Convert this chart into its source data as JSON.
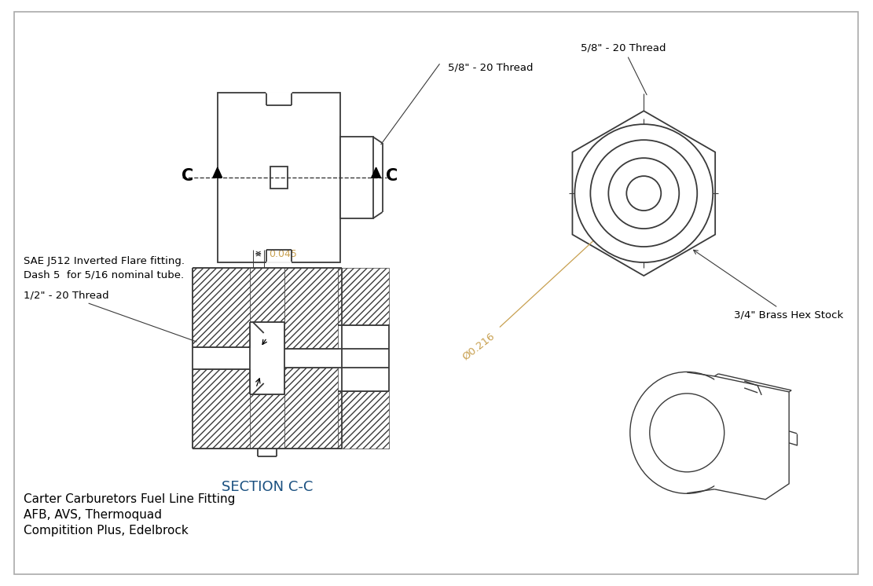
{
  "bg_color": "#ffffff",
  "line_color": "#3a3a3a",
  "dim_color": "#c8a050",
  "section_label_color": "#1a5080",
  "title_lines": [
    "Carter Carburetors Fuel Line Fitting",
    "AFB, AVS, Thermoquad",
    "Compitition Plus, Edelbrock"
  ],
  "sae_line1": "SAE J512 Inverted Flare fitting.",
  "sae_line2": "Dash 5  for 5/16 nominal tube.",
  "half_thread_label": "1/2\" - 20 Thread",
  "thread_label": "5/8\" - 20 Thread",
  "hex_label": "3/4\" Brass Hex Stock",
  "dim_label": "0.045",
  "dia_label": "Ø0.216",
  "section_label": "SECTION C-C"
}
